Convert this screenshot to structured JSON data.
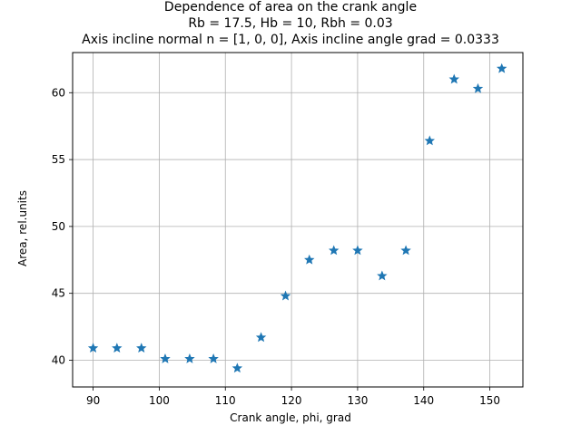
{
  "chart_data": {
    "type": "scatter",
    "title_lines": [
      "Dependence of area on the crank angle",
      "Rb = 17.5, Hb = 10, Rbh = 0.03",
      "Axis incline normal n = [1, 0, 0], Axis incline angle grad = 0.0333"
    ],
    "xlabel": "Crank angle, phi, grad",
    "ylabel": "Area, rel.units",
    "xlim": [
      86.9,
      155.0
    ],
    "ylim": [
      38.0,
      63.0
    ],
    "xticks": [
      90,
      100,
      110,
      120,
      130,
      140,
      150
    ],
    "yticks": [
      40,
      45,
      50,
      55,
      60
    ],
    "grid": true,
    "marker": "star",
    "color": "#1f77b4",
    "x": [
      90.0,
      93.6,
      97.3,
      100.9,
      104.6,
      108.2,
      111.8,
      115.4,
      119.1,
      122.7,
      126.4,
      130.0,
      133.7,
      137.3,
      140.9,
      144.6,
      148.2,
      151.8
    ],
    "y": [
      40.9,
      40.9,
      40.9,
      40.1,
      40.1,
      40.1,
      39.4,
      41.7,
      44.8,
      47.5,
      48.2,
      48.2,
      46.3,
      48.2,
      56.4,
      61.0,
      60.3,
      61.8
    ]
  }
}
